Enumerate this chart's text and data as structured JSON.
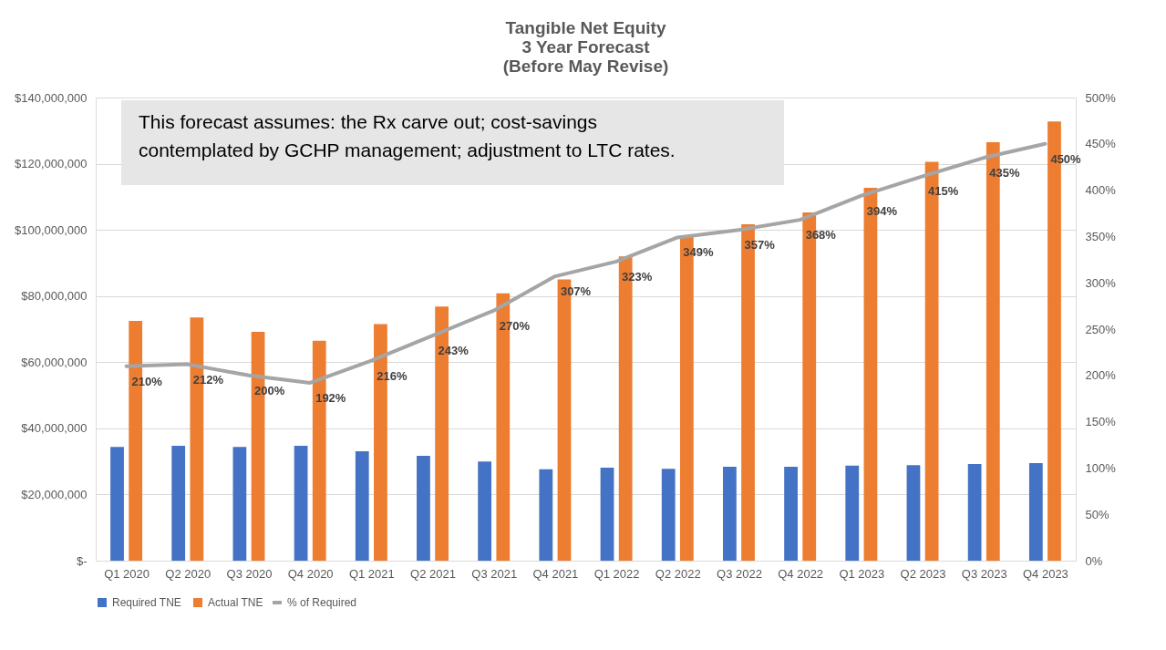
{
  "chart_data": {
    "type": "bar",
    "title": [
      "Tangible Net Equity",
      "3 Year Forecast",
      "(Before May Revise)"
    ],
    "categories": [
      "Q1 2020",
      "Q2 2020",
      "Q3 2020",
      "Q4 2020",
      "Q1 2021",
      "Q2 2021",
      "Q3 2021",
      "Q4 2021",
      "Q1 2022",
      "Q2 2022",
      "Q3 2022",
      "Q4 2022",
      "Q1 2023",
      "Q2 2023",
      "Q3 2023",
      "Q4 2023"
    ],
    "series": [
      {
        "name": "Required TNE",
        "color": "#4472c4",
        "values": [
          34400000,
          34700000,
          34400000,
          34700000,
          33100000,
          31700000,
          30000000,
          27600000,
          28100000,
          27800000,
          28400000,
          28400000,
          28700000,
          28900000,
          29200000,
          29500000
        ]
      },
      {
        "name": "Actual TNE",
        "color": "#ed7d31",
        "values": [
          72500000,
          73500000,
          69200000,
          66500000,
          71500000,
          76800000,
          80800000,
          85000000,
          92000000,
          98000000,
          101700000,
          105300000,
          112700000,
          120600000,
          126500000,
          132800000
        ]
      },
      {
        "name": "% of Required",
        "type": "line",
        "axis": "y2",
        "color": "#a5a5a5",
        "values": [
          210,
          212,
          200,
          192,
          216,
          243,
          270,
          307,
          323,
          349,
          357,
          368,
          394,
          415,
          435,
          450
        ],
        "value_labels": [
          "210%",
          "212%",
          "200%",
          "192%",
          "216%",
          "243%",
          "270%",
          "307%",
          "323%",
          "349%",
          "357%",
          "368%",
          "394%",
          "415%",
          "435%",
          "450%"
        ]
      }
    ],
    "ylim": [
      0,
      140000000
    ],
    "yticks": [
      {
        "value": 0,
        "label": "$-"
      },
      {
        "value": 20000000,
        "label": "$20,000,000"
      },
      {
        "value": 40000000,
        "label": "$40,000,000"
      },
      {
        "value": 60000000,
        "label": "$60,000,000"
      },
      {
        "value": 80000000,
        "label": "$80,000,000"
      },
      {
        "value": 100000000,
        "label": "$100,000,000"
      },
      {
        "value": 120000000,
        "label": "$120,000,000"
      },
      {
        "value": 140000000,
        "label": "$140,000,000"
      }
    ],
    "y2lim": [
      0,
      500
    ],
    "y2ticks": [
      {
        "value": 0,
        "label": "0%"
      },
      {
        "value": 50,
        "label": "50%"
      },
      {
        "value": 100,
        "label": "100%"
      },
      {
        "value": 150,
        "label": "150%"
      },
      {
        "value": 200,
        "label": "200%"
      },
      {
        "value": 250,
        "label": "250%"
      },
      {
        "value": 300,
        "label": "300%"
      },
      {
        "value": 350,
        "label": "350%"
      },
      {
        "value": 400,
        "label": "400%"
      },
      {
        "value": 450,
        "label": "450%"
      },
      {
        "value": 500,
        "label": "500%"
      }
    ],
    "annotations": [
      "This forecast assumes: the Rx carve out; cost-savings\ncontemplated by GCHP management; adjustment to LTC rates."
    ],
    "grid": "y",
    "legend": "bottom"
  }
}
